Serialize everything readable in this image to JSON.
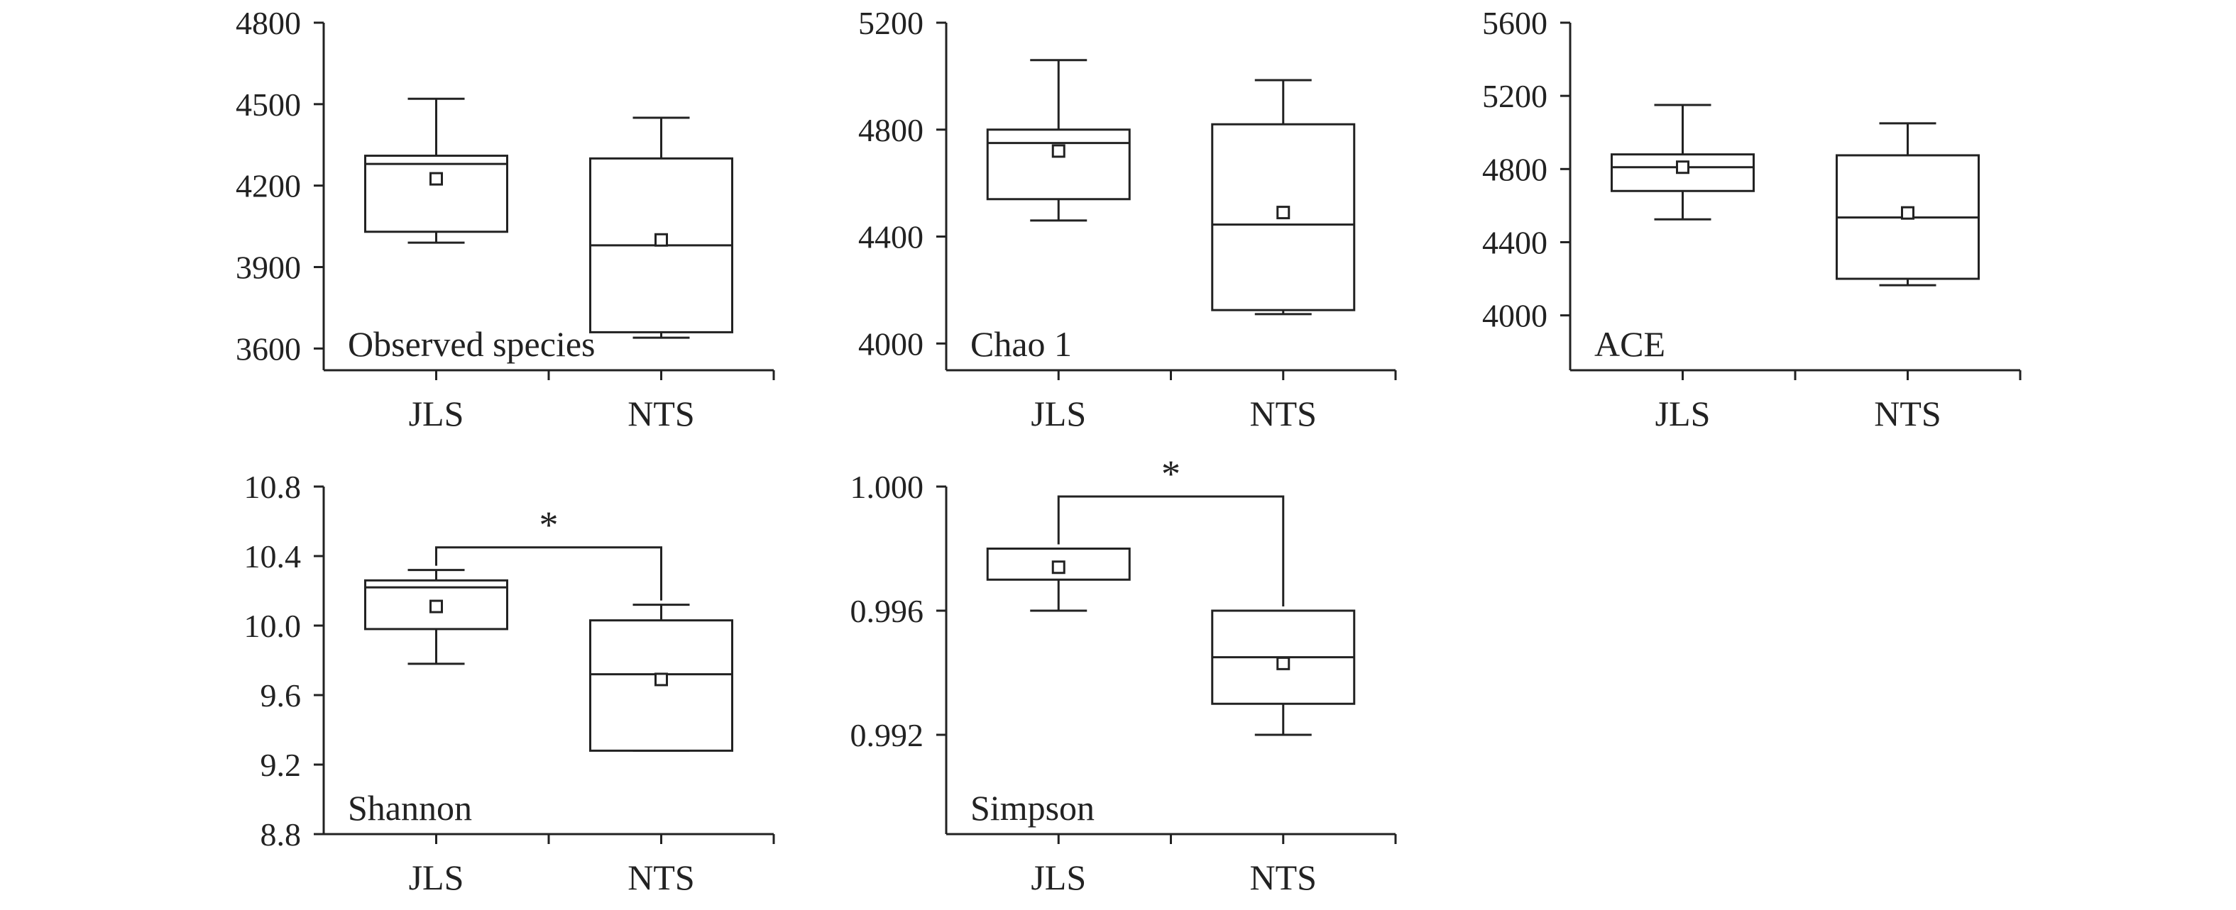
{
  "chart_data": [
    {
      "type": "box",
      "label": "Observed species",
      "categories": [
        "JLS",
        "NTS"
      ],
      "ylim": [
        3520,
        4800
      ],
      "yticks": [
        3600,
        3900,
        4200,
        4500,
        4800
      ],
      "ytick_labels": [
        "3600",
        "3900",
        "4200",
        "4500",
        "4800"
      ],
      "boxes": [
        {
          "category": "JLS",
          "min": 3990,
          "q1": 4030,
          "median": 4280,
          "q3": 4310,
          "max": 4520,
          "mean": 4225
        },
        {
          "category": "NTS",
          "min": 3640,
          "q1": 3660,
          "median": 3980,
          "q3": 4300,
          "max": 4450,
          "mean": 4000
        }
      ],
      "significance": null
    },
    {
      "type": "box",
      "label": "Chao 1",
      "categories": [
        "JLS",
        "NTS"
      ],
      "ylim": [
        3900,
        5200
      ],
      "yticks": [
        4000,
        4400,
        4800,
        5200
      ],
      "ytick_labels": [
        "4000",
        "4400",
        "4800",
        "5200"
      ],
      "boxes": [
        {
          "category": "JLS",
          "min": 4460,
          "q1": 4540,
          "median": 4750,
          "q3": 4800,
          "max": 5060,
          "mean": 4720
        },
        {
          "category": "NTS",
          "min": 4110,
          "q1": 4125,
          "median": 4445,
          "q3": 4820,
          "max": 4985,
          "mean": 4490
        }
      ],
      "significance": null
    },
    {
      "type": "box",
      "label": "ACE",
      "categories": [
        "JLS",
        "NTS"
      ],
      "ylim": [
        3700,
        5600
      ],
      "yticks": [
        4000,
        4400,
        4800,
        5200,
        5600
      ],
      "ytick_labels": [
        "4000",
        "4400",
        "4800",
        "5200",
        "5600"
      ],
      "boxes": [
        {
          "category": "JLS",
          "min": 4525,
          "q1": 4680,
          "median": 4810,
          "q3": 4880,
          "max": 5150,
          "mean": 4810
        },
        {
          "category": "NTS",
          "min": 4165,
          "q1": 4200,
          "median": 4535,
          "q3": 4875,
          "max": 5050,
          "mean": 4560
        }
      ],
      "significance": null
    },
    {
      "type": "box",
      "label": "Shannon",
      "categories": [
        "JLS",
        "NTS"
      ],
      "ylim": [
        8.8,
        10.8
      ],
      "yticks": [
        8.8,
        9.2,
        9.6,
        10.0,
        10.4,
        10.8
      ],
      "ytick_labels": [
        "8.8",
        "9.2",
        "9.6",
        "10.0",
        "10.4",
        "10.8"
      ],
      "boxes": [
        {
          "category": "JLS",
          "min": 9.78,
          "q1": 9.98,
          "median": 10.22,
          "q3": 10.26,
          "max": 10.32,
          "mean": 10.11
        },
        {
          "category": "NTS",
          "min": 9.28,
          "q1": 9.28,
          "median": 9.72,
          "q3": 10.03,
          "max": 10.12,
          "mean": 9.69
        }
      ],
      "significance": {
        "between": [
          "JLS",
          "NTS"
        ],
        "label": "*",
        "y": 10.45
      }
    },
    {
      "type": "box",
      "label": "Simpson",
      "categories": [
        "JLS",
        "NTS"
      ],
      "ylim": [
        0.9888,
        1.0
      ],
      "yticks": [
        0.992,
        0.996,
        1.0
      ],
      "ytick_labels": [
        "0.992",
        "0.996",
        "1.000"
      ],
      "boxes": [
        {
          "category": "JLS",
          "min": 0.996,
          "q1": 0.997,
          "median": 0.998,
          "q3": 0.998,
          "max": 0.998,
          "mean": 0.9974
        },
        {
          "category": "NTS",
          "min": 0.992,
          "q1": 0.993,
          "median": 0.9945,
          "q3": 0.996,
          "max": 0.996,
          "mean": 0.9943
        }
      ],
      "significance": {
        "between": [
          "JLS",
          "NTS"
        ],
        "label": "*",
        "y": 0.99968
      }
    }
  ]
}
